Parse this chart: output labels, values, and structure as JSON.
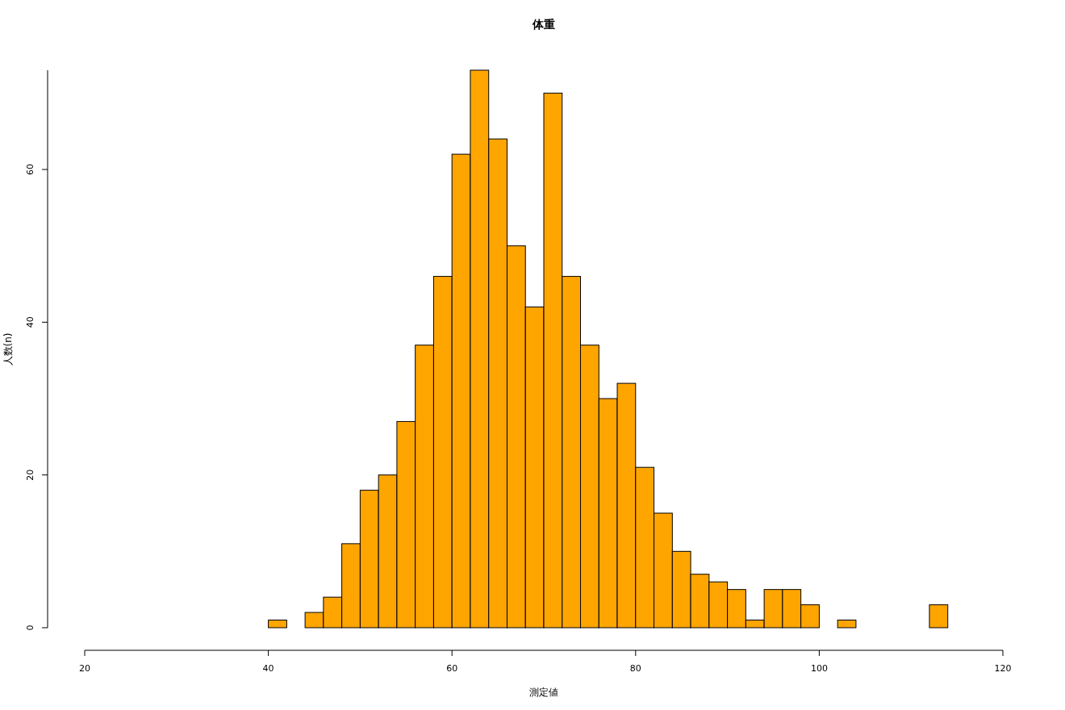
{
  "chart_data": {
    "type": "histogram",
    "title": "体重",
    "xlabel": "測定値",
    "ylabel": "人数(n)",
    "bins": [
      40,
      42,
      44,
      46,
      48,
      50,
      52,
      54,
      56,
      58,
      60,
      62,
      64,
      66,
      68,
      70,
      72,
      74,
      76,
      78,
      80,
      82,
      84,
      86,
      88,
      90,
      92,
      94,
      96,
      98,
      100,
      102,
      104,
      106,
      108,
      110,
      112,
      114
    ],
    "values": [
      1,
      0,
      2,
      4,
      11,
      18,
      20,
      27,
      37,
      46,
      62,
      73,
      64,
      50,
      42,
      70,
      46,
      37,
      30,
      32,
      21,
      15,
      10,
      7,
      6,
      5,
      1,
      5,
      5,
      3,
      0,
      1,
      0,
      0,
      0,
      0,
      3
    ],
    "color": "#ffa500",
    "xlim": [
      20,
      120
    ],
    "xticks": [
      20,
      40,
      60,
      80,
      100,
      120
    ],
    "ylim": [
      0,
      73
    ],
    "yticks": [
      0,
      20,
      40,
      60
    ]
  }
}
